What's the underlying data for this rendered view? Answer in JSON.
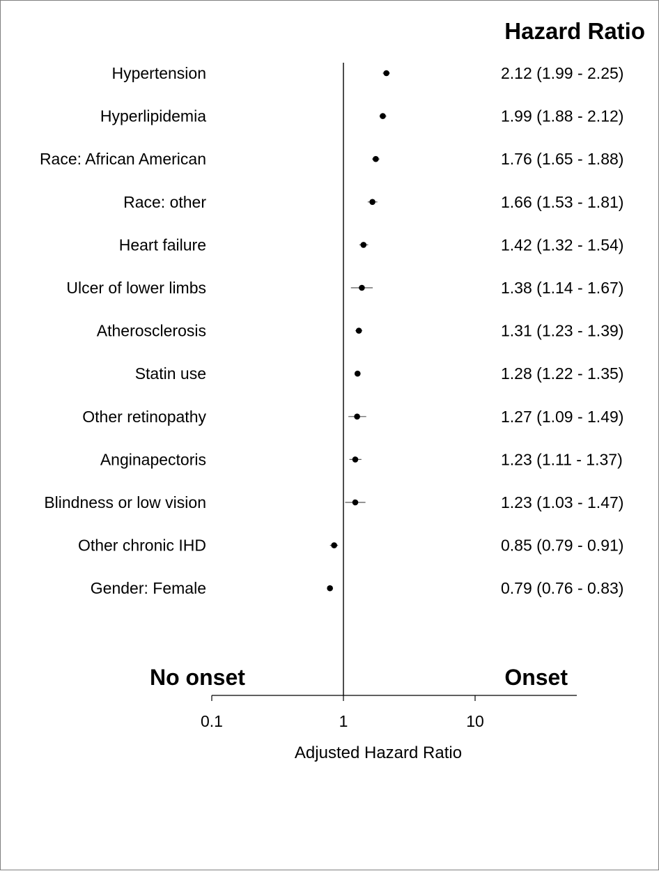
{
  "chart_data": {
    "type": "forest",
    "title": "",
    "value_column_header": "Hazard Ratio",
    "xlabel": "Adjusted Hazard Ratio",
    "xscale": "log",
    "xlim": [
      0.1,
      60
    ],
    "xticks": [
      0.1,
      1,
      10
    ],
    "xtick_labels": [
      "0.1",
      "1",
      "10"
    ],
    "reference_line": 1,
    "region_labels": {
      "left": "No onset",
      "right": "Onset"
    },
    "grid": false,
    "rows": [
      {
        "label": "Hypertension",
        "hr": 2.12,
        "lower": 1.99,
        "upper": 2.25,
        "text": "2.12 (1.99 - 2.25)"
      },
      {
        "label": "Hyperlipidemia",
        "hr": 1.99,
        "lower": 1.88,
        "upper": 2.12,
        "text": "1.99 (1.88 - 2.12)"
      },
      {
        "label": "Race: African American",
        "hr": 1.76,
        "lower": 1.65,
        "upper": 1.88,
        "text": "1.76 (1.65 - 1.88)"
      },
      {
        "label": "Race: other",
        "hr": 1.66,
        "lower": 1.53,
        "upper": 1.81,
        "text": "1.66 (1.53 - 1.81)"
      },
      {
        "label": "Heart failure",
        "hr": 1.42,
        "lower": 1.32,
        "upper": 1.54,
        "text": "1.42 (1.32 - 1.54)"
      },
      {
        "label": "Ulcer of lower limbs",
        "hr": 1.38,
        "lower": 1.14,
        "upper": 1.67,
        "text": "1.38 (1.14 - 1.67)"
      },
      {
        "label": "Atherosclerosis",
        "hr": 1.31,
        "lower": 1.23,
        "upper": 1.39,
        "text": "1.31 (1.23 - 1.39)"
      },
      {
        "label": "Statin use",
        "hr": 1.28,
        "lower": 1.22,
        "upper": 1.35,
        "text": "1.28 (1.22 - 1.35)"
      },
      {
        "label": "Other retinopathy",
        "hr": 1.27,
        "lower": 1.09,
        "upper": 1.49,
        "text": "1.27 (1.09 - 1.49)"
      },
      {
        "label": "Anginapectoris",
        "hr": 1.23,
        "lower": 1.11,
        "upper": 1.37,
        "text": "1.23 (1.11 - 1.37)"
      },
      {
        "label": "Blindness or low vision",
        "hr": 1.23,
        "lower": 1.03,
        "upper": 1.47,
        "text": "1.23 (1.03 - 1.47)"
      },
      {
        "label": "Other chronic IHD",
        "hr": 0.85,
        "lower": 0.79,
        "upper": 0.91,
        "text": "0.85 (0.79 - 0.91)"
      },
      {
        "label": "Gender: Female",
        "hr": 0.79,
        "lower": 0.76,
        "upper": 0.83,
        "text": "0.79 (0.76 - 0.83)"
      }
    ]
  }
}
